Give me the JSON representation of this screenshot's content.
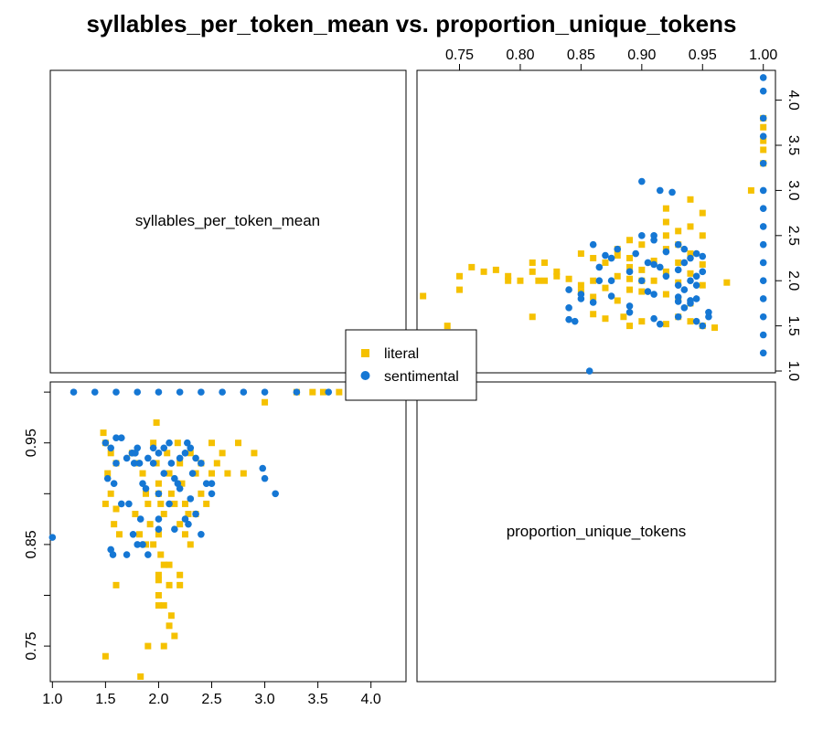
{
  "colors": {
    "literal": "#F5C100",
    "sentimental": "#1577D4",
    "axis": "#000000",
    "background": "#FFFFFF"
  },
  "chart_data": {
    "type": "scatter",
    "title": "syllables_per_token_mean vs. proportion_unique_tokens",
    "variables": [
      "syllables_per_token_mean",
      "proportion_unique_tokens"
    ],
    "layout": "pairs-matrix",
    "legend": {
      "position": "center",
      "entries": [
        {
          "name": "literal",
          "marker": "square",
          "color": "#F5C100"
        },
        {
          "name": "sentimental",
          "marker": "circle",
          "color": "#1577D4"
        }
      ]
    },
    "axes": {
      "syllables_per_token_mean": {
        "range": [
          0.98,
          4.33
        ],
        "ticks": [
          1.0,
          1.5,
          2.0,
          2.5,
          3.0,
          3.5,
          4.0
        ],
        "tick_labels": [
          "1.0",
          "1.5",
          "2.0",
          "2.5",
          "3.0",
          "3.5",
          "4.0"
        ]
      },
      "proportion_unique_tokens": {
        "range": [
          0.715,
          1.01
        ],
        "ticks": [
          0.75,
          0.8,
          0.85,
          0.9,
          0.95,
          1.0
        ],
        "tick_labels_top": [
          "0.75",
          "0.80",
          "0.85",
          "0.90",
          "0.95",
          "1.00"
        ],
        "tick_labels_left": [
          "0.75",
          "0.85",
          "0.95"
        ]
      }
    },
    "series": [
      {
        "name": "literal",
        "x_variable": "syllables_per_token_mean",
        "y_variable": "proportion_unique_tokens",
        "points": [
          [
            1.5,
            0.74
          ],
          [
            1.83,
            0.72
          ],
          [
            1.9,
            0.75
          ],
          [
            2.05,
            0.75
          ],
          [
            1.6,
            0.81
          ],
          [
            1.48,
            0.96
          ],
          [
            1.5,
            0.95
          ],
          [
            1.55,
            0.94
          ],
          [
            1.6,
            0.93
          ],
          [
            1.52,
            0.92
          ],
          [
            1.55,
            0.9
          ],
          [
            1.5,
            0.89
          ],
          [
            1.6,
            0.885
          ],
          [
            1.58,
            0.87
          ],
          [
            1.63,
            0.86
          ],
          [
            1.75,
            0.94
          ],
          [
            1.8,
            0.93
          ],
          [
            1.85,
            0.92
          ],
          [
            1.88,
            0.9
          ],
          [
            1.9,
            0.89
          ],
          [
            1.95,
            0.95
          ],
          [
            1.98,
            0.93
          ],
          [
            2.0,
            0.91
          ],
          [
            2.0,
            0.9
          ],
          [
            2.02,
            0.89
          ],
          [
            2.05,
            0.88
          ],
          [
            2.08,
            0.94
          ],
          [
            2.1,
            0.92
          ],
          [
            2.12,
            0.9
          ],
          [
            2.15,
            0.89
          ],
          [
            2.18,
            0.95
          ],
          [
            2.2,
            0.93
          ],
          [
            2.22,
            0.91
          ],
          [
            2.25,
            0.89
          ],
          [
            2.28,
            0.88
          ],
          [
            1.78,
            0.88
          ],
          [
            1.82,
            0.86
          ],
          [
            1.88,
            0.85
          ],
          [
            1.92,
            0.87
          ],
          [
            1.95,
            0.85
          ],
          [
            2.0,
            0.86
          ],
          [
            2.02,
            0.84
          ],
          [
            2.05,
            0.83
          ],
          [
            2.1,
            0.83
          ],
          [
            2.0,
            0.82
          ],
          [
            2.0,
            0.815
          ],
          [
            2.0,
            0.8
          ],
          [
            2.05,
            0.79
          ],
          [
            2.0,
            0.79
          ],
          [
            2.12,
            0.78
          ],
          [
            2.1,
            0.77
          ],
          [
            2.15,
            0.76
          ],
          [
            2.1,
            0.81
          ],
          [
            2.2,
            0.82
          ],
          [
            2.2,
            0.81
          ],
          [
            2.3,
            0.94
          ],
          [
            2.35,
            0.92
          ],
          [
            2.4,
            0.93
          ],
          [
            2.4,
            0.9
          ],
          [
            2.45,
            0.89
          ],
          [
            2.5,
            0.92
          ],
          [
            2.5,
            0.95
          ],
          [
            2.55,
            0.93
          ],
          [
            2.6,
            0.94
          ],
          [
            2.65,
            0.92
          ],
          [
            2.75,
            0.95
          ],
          [
            2.8,
            0.92
          ],
          [
            2.9,
            0.94
          ],
          [
            2.3,
            0.85
          ],
          [
            2.25,
            0.86
          ],
          [
            2.35,
            0.88
          ],
          [
            2.2,
            0.87
          ],
          [
            1.98,
            0.97
          ],
          [
            3.0,
            0.99
          ],
          [
            3.55,
            1.0
          ],
          [
            3.7,
            1.0
          ],
          [
            3.8,
            1.0
          ],
          [
            3.45,
            1.0
          ],
          [
            3.3,
            1.0
          ]
        ]
      },
      {
        "name": "sentimental",
        "x_variable": "syllables_per_token_mean",
        "y_variable": "proportion_unique_tokens",
        "points": [
          [
            1.0,
            0.857
          ],
          [
            1.5,
            0.95
          ],
          [
            1.55,
            0.945
          ],
          [
            1.6,
            0.955
          ],
          [
            1.65,
            0.955
          ],
          [
            1.52,
            0.915
          ],
          [
            1.58,
            0.91
          ],
          [
            1.6,
            0.93
          ],
          [
            1.55,
            0.845
          ],
          [
            1.57,
            0.84
          ],
          [
            1.65,
            0.89
          ],
          [
            1.7,
            0.935
          ],
          [
            1.75,
            0.94
          ],
          [
            1.78,
            0.94
          ],
          [
            1.8,
            0.945
          ],
          [
            1.82,
            0.93
          ],
          [
            1.85,
            0.91
          ],
          [
            1.88,
            0.905
          ],
          [
            1.83,
            0.875
          ],
          [
            1.76,
            0.86
          ],
          [
            1.8,
            0.85
          ],
          [
            1.85,
            0.85
          ],
          [
            1.72,
            0.89
          ],
          [
            1.9,
            0.935
          ],
          [
            1.95,
            0.93
          ],
          [
            2.0,
            0.94
          ],
          [
            2.05,
            0.945
          ],
          [
            2.1,
            0.95
          ],
          [
            2.12,
            0.93
          ],
          [
            2.15,
            0.915
          ],
          [
            2.18,
            0.91
          ],
          [
            2.05,
            0.92
          ],
          [
            2.0,
            0.9
          ],
          [
            2.1,
            0.89
          ],
          [
            2.2,
            0.935
          ],
          [
            2.25,
            0.94
          ],
          [
            2.3,
            0.945
          ],
          [
            2.35,
            0.935
          ],
          [
            2.32,
            0.92
          ],
          [
            2.4,
            0.93
          ],
          [
            2.45,
            0.91
          ],
          [
            2.3,
            0.895
          ],
          [
            2.35,
            0.88
          ],
          [
            2.28,
            0.87
          ],
          [
            2.4,
            0.86
          ],
          [
            1.9,
            0.84
          ],
          [
            2.0,
            0.865
          ],
          [
            2.15,
            0.865
          ],
          [
            2.25,
            0.875
          ],
          [
            2.5,
            0.91
          ],
          [
            2.0,
            0.875
          ],
          [
            1.7,
            0.84
          ],
          [
            1.77,
            0.93
          ],
          [
            1.95,
            0.945
          ],
          [
            2.27,
            0.95
          ],
          [
            2.5,
            0.9
          ],
          [
            3.0,
            0.915
          ],
          [
            3.1,
            0.9
          ],
          [
            2.98,
            0.925
          ],
          [
            2.2,
            0.905
          ],
          [
            1.2,
            1.0
          ],
          [
            1.4,
            1.0
          ],
          [
            1.6,
            1.0
          ],
          [
            1.8,
            1.0
          ],
          [
            2.0,
            1.0
          ],
          [
            2.2,
            1.0
          ],
          [
            2.4,
            1.0
          ],
          [
            2.6,
            1.0
          ],
          [
            2.8,
            1.0
          ],
          [
            3.0,
            1.0
          ],
          [
            3.3,
            1.0
          ],
          [
            3.6,
            1.0
          ],
          [
            3.8,
            1.0
          ],
          [
            4.1,
            1.0
          ],
          [
            4.25,
            1.0
          ]
        ]
      }
    ]
  }
}
